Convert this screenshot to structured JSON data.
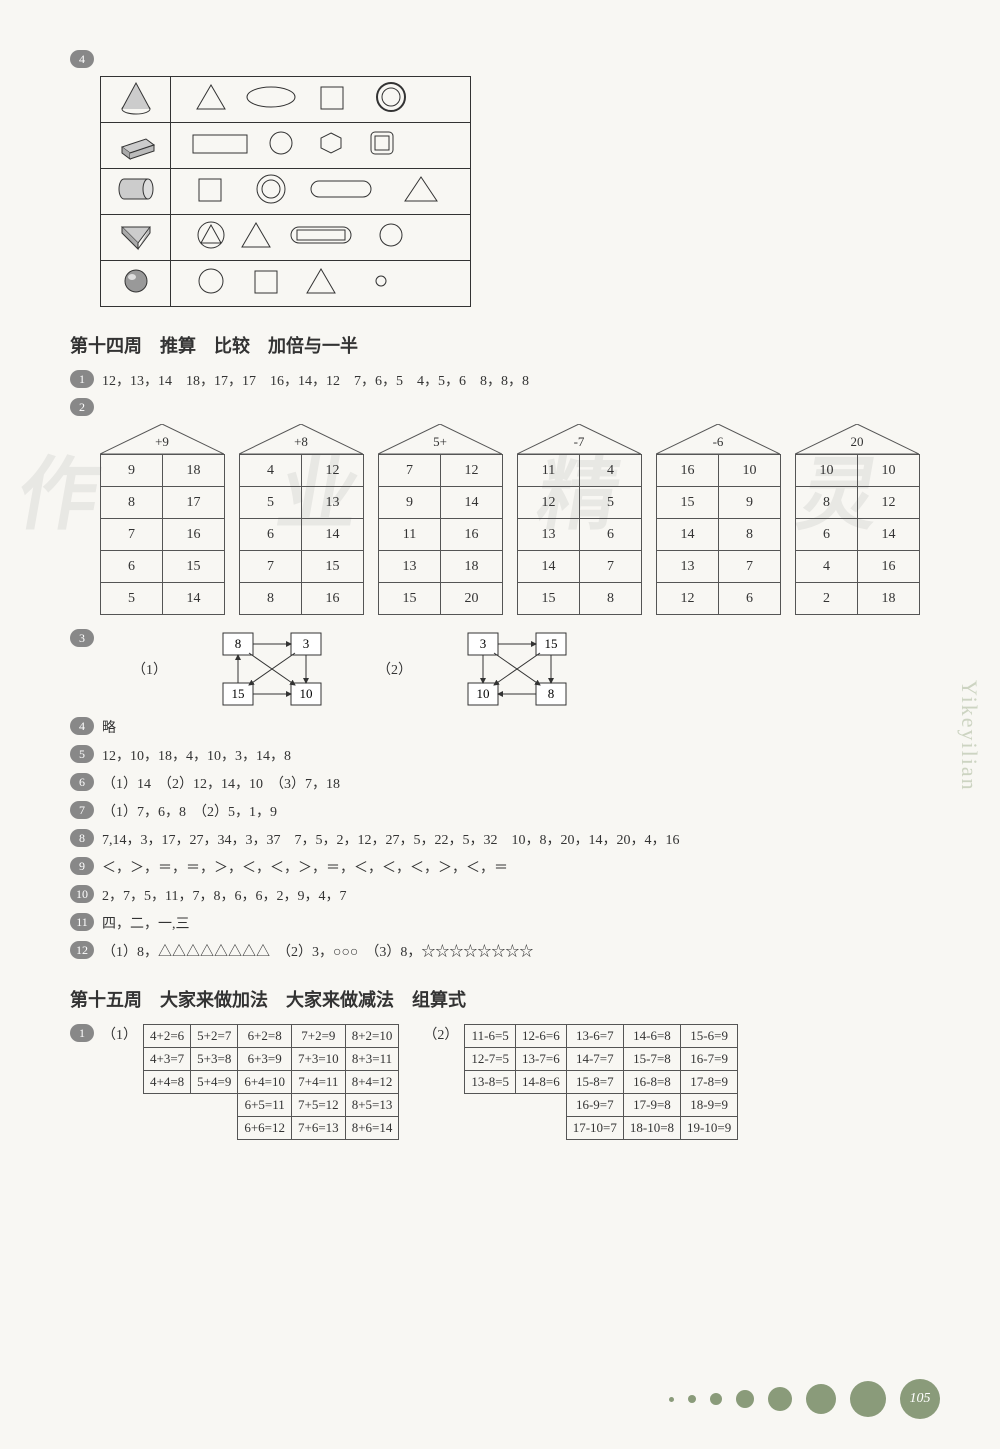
{
  "section14": {
    "title": "第十四周　推算　比较　加倍与一半",
    "q1": "12，13，14　18，17，17　16，14，12　7，6，5　4，5，6　8，8，8",
    "houses": [
      {
        "label": "+9",
        "rows": [
          [
            "9",
            "18"
          ],
          [
            "8",
            "17"
          ],
          [
            "7",
            "16"
          ],
          [
            "6",
            "15"
          ],
          [
            "5",
            "14"
          ]
        ]
      },
      {
        "label": "+8",
        "rows": [
          [
            "4",
            "12"
          ],
          [
            "5",
            "13"
          ],
          [
            "6",
            "14"
          ],
          [
            "7",
            "15"
          ],
          [
            "8",
            "16"
          ]
        ]
      },
      {
        "label": "5+",
        "rows": [
          [
            "7",
            "12"
          ],
          [
            "9",
            "14"
          ],
          [
            "11",
            "16"
          ],
          [
            "13",
            "18"
          ],
          [
            "15",
            "20"
          ]
        ]
      },
      {
        "label": "-7",
        "rows": [
          [
            "11",
            "4"
          ],
          [
            "12",
            "5"
          ],
          [
            "13",
            "6"
          ],
          [
            "14",
            "7"
          ],
          [
            "15",
            "8"
          ]
        ]
      },
      {
        "label": "-6",
        "rows": [
          [
            "16",
            "10"
          ],
          [
            "15",
            "9"
          ],
          [
            "14",
            "8"
          ],
          [
            "13",
            "7"
          ],
          [
            "12",
            "6"
          ]
        ]
      },
      {
        "label": "20",
        "rows": [
          [
            "10",
            "10"
          ],
          [
            "8",
            "12"
          ],
          [
            "6",
            "14"
          ],
          [
            "4",
            "16"
          ],
          [
            "2",
            "18"
          ]
        ]
      }
    ],
    "q3": {
      "set1": [
        "8",
        "3",
        "15",
        "10"
      ],
      "set2": [
        "3",
        "15",
        "10",
        "8"
      ]
    },
    "q4": "略",
    "q5": "12，10，18，4，10，3，14，8",
    "q6": "（1）14　（2）12，14，10　（3）7，18",
    "q7": "（1）7，6，8　（2）5，1，9",
    "q8": "7,14，3，17，27，34，3，37　7，5，2，12，27，5，22，5，32　10，8，20，14，20，4，16",
    "q9": "＜，＞，＝，＝，＞，＜，＜，＞，＝，＜，＜，＜，＞，＜，＝",
    "q10": "2，7，5，11，7，8，6，6，2，9，4，7",
    "q11": "四，二，一,三",
    "q12": "（1）8，△△△△△△△△　（2）3，○○○　（3）8，☆☆☆☆☆☆☆☆"
  },
  "section15": {
    "title": "第十五周　大家来做加法　大家来做减法　组算式",
    "table1": [
      [
        "4+2=6",
        "5+2=7",
        "6+2=8",
        "7+2=9",
        "8+2=10"
      ],
      [
        "4+3=7",
        "5+3=8",
        "6+3=9",
        "7+3=10",
        "8+3=11"
      ],
      [
        "4+4=8",
        "5+4=9",
        "6+4=10",
        "7+4=11",
        "8+4=12"
      ],
      [
        "",
        "",
        "6+5=11",
        "7+5=12",
        "8+5=13"
      ],
      [
        "",
        "",
        "6+6=12",
        "7+6=13",
        "8+6=14"
      ]
    ],
    "table2": [
      [
        "11-6=5",
        "12-6=6",
        "13-6=7",
        "14-6=8",
        "15-6=9"
      ],
      [
        "12-7=5",
        "13-7=6",
        "14-7=7",
        "15-7=8",
        "16-7=9"
      ],
      [
        "13-8=5",
        "14-8=6",
        "15-8=7",
        "16-8=8",
        "17-8=9"
      ],
      [
        "",
        "",
        "16-9=7",
        "17-9=8",
        "18-9=9"
      ],
      [
        "",
        "",
        "17-10=7",
        "18-10=8",
        "19-10=9"
      ]
    ]
  },
  "labels": {
    "l1": "（1）",
    "l2": "（2）",
    "n1": "1",
    "n2": "2",
    "n3": "3",
    "n4": "4",
    "n5": "5",
    "n6": "6",
    "n7": "7",
    "n8": "8",
    "n9": "9",
    "n10": "10",
    "n11": "11",
    "n12": "12"
  },
  "page": "105",
  "sideText": "Yikeyilian",
  "colors": {
    "badge": "#8a9b7a",
    "dots": "#8a9b7a"
  }
}
